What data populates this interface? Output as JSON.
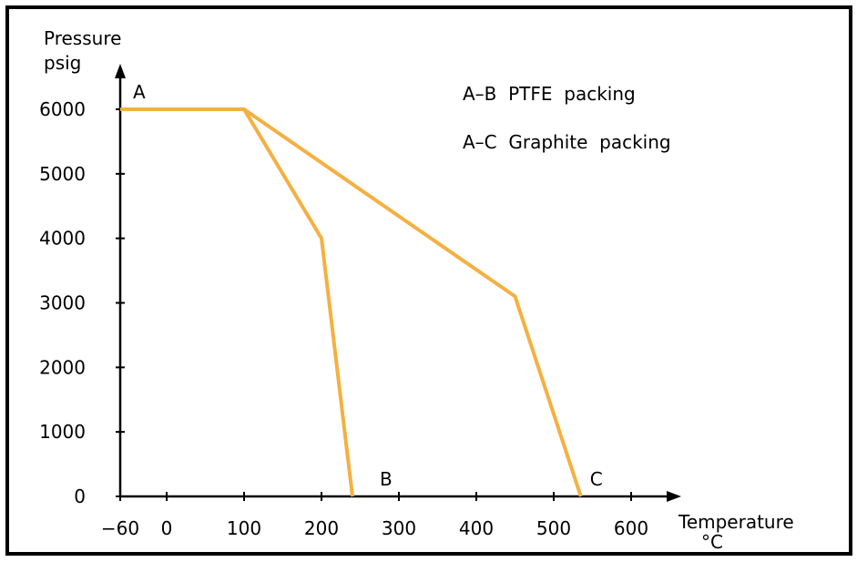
{
  "chart_data": {
    "type": "line",
    "ylabel_line1": "Pressure",
    "ylabel_line2": "psig",
    "xlabel_line1": "Temperature",
    "xlabel_line2": "°C",
    "x_ticks": [
      -60,
      0,
      100,
      200,
      300,
      400,
      500,
      600
    ],
    "x_tick_labels": [
      "−60",
      "0",
      "100",
      "200",
      "300",
      "400",
      "500",
      "600"
    ],
    "y_ticks": [
      0,
      1000,
      2000,
      3000,
      4000,
      5000,
      6000
    ],
    "y_tick_labels": [
      "0",
      "1000",
      "2000",
      "3000",
      "4000",
      "5000",
      "6000"
    ],
    "xlim": [
      -60,
      640
    ],
    "ylim": [
      0,
      6600
    ],
    "grid": false,
    "series": [
      {
        "name": "A–B PTFE packing",
        "color": "#f5b041",
        "x": [
          -60,
          100,
          200,
          240
        ],
        "y": [
          6000,
          6000,
          4000,
          0
        ]
      },
      {
        "name": "A–C Graphite packing",
        "color": "#f5b041",
        "x": [
          100,
          450,
          535
        ],
        "y": [
          6000,
          3100,
          0
        ]
      }
    ],
    "legend": [
      "A–B  PTFE  packing",
      "A–C  Graphite  packing"
    ],
    "point_labels": [
      {
        "text": "A",
        "x": -60,
        "y": 6000
      },
      {
        "text": "B",
        "x": 240,
        "y": 0
      },
      {
        "text": "C",
        "x": 535,
        "y": 0
      }
    ]
  }
}
